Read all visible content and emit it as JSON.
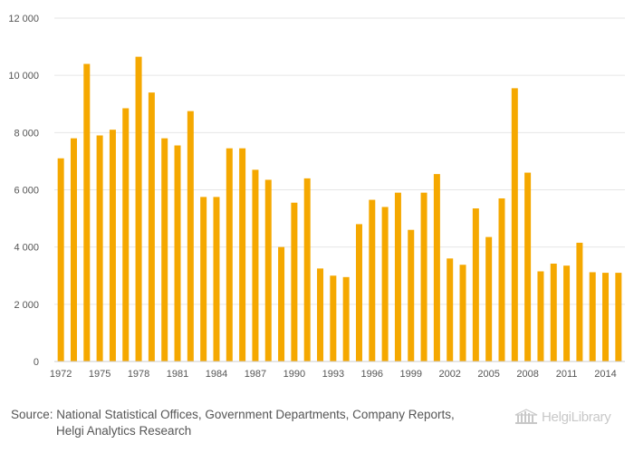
{
  "chart_data": {
    "type": "bar",
    "title": "",
    "xlabel": "",
    "ylabel": "",
    "ylim": [
      0,
      12000
    ],
    "yticks": [
      0,
      2000,
      4000,
      6000,
      8000,
      10000,
      12000
    ],
    "ytick_labels": [
      "0",
      "2 000",
      "4 000",
      "6 000",
      "8 000",
      "10 000",
      "12 000"
    ],
    "categories": [
      "1972",
      "1973",
      "1974",
      "1975",
      "1976",
      "1977",
      "1978",
      "1979",
      "1980",
      "1981",
      "1982",
      "1983",
      "1984",
      "1985",
      "1986",
      "1987",
      "1988",
      "1989",
      "1990",
      "1991",
      "1992",
      "1993",
      "1994",
      "1995",
      "1996",
      "1997",
      "1998",
      "1999",
      "2000",
      "2001",
      "2002",
      "2003",
      "2004",
      "2005",
      "2006",
      "2007",
      "2008",
      "2009",
      "2010",
      "2011",
      "2012",
      "2013",
      "2014",
      "2015"
    ],
    "xtick_labels": [
      "1972",
      "1975",
      "1978",
      "1981",
      "1984",
      "1987",
      "1990",
      "1993",
      "1996",
      "1999",
      "2002",
      "2005",
      "2008",
      "2011",
      "2014"
    ],
    "values": [
      7100,
      7800,
      10400,
      7900,
      8100,
      8850,
      10650,
      9400,
      7800,
      7550,
      8750,
      5750,
      5750,
      7450,
      7450,
      6700,
      6350,
      4000,
      5550,
      6400,
      3250,
      3000,
      2950,
      4800,
      5650,
      5400,
      5900,
      4600,
      5900,
      6550,
      3600,
      3380,
      5350,
      4350,
      5700,
      9550,
      6600,
      3150,
      3420,
      3350,
      4150,
      3120,
      3100,
      3100
    ],
    "color": "#f5a800",
    "grid": true,
    "legend": "none"
  },
  "footer": {
    "source_line1": "Source: National Statistical Offices, Government Departments, Company Reports,",
    "source_line2": "Helgi Analytics Research"
  },
  "brand": {
    "name": "HelgiLibrary",
    "icon": "library-building-icon",
    "color": "#c8c8c8"
  }
}
